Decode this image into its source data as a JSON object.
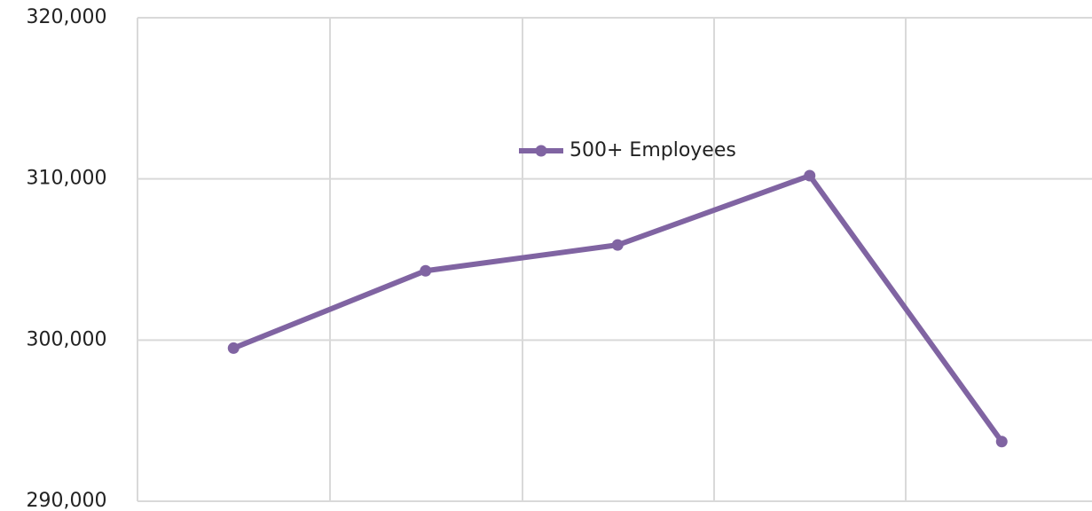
{
  "chart_data": {
    "type": "line",
    "categories": [
      null,
      null,
      null,
      null,
      null
    ],
    "series": [
      {
        "name": "500+ Employees",
        "color": "#8064a2",
        "values": [
          299500,
          304300,
          305900,
          310200,
          293700
        ]
      }
    ],
    "ylim": [
      290000,
      320000
    ],
    "yticks": [
      {
        "value": 290000,
        "label": "290,000"
      },
      {
        "value": 300000,
        "label": "300,000"
      },
      {
        "value": 310000,
        "label": "310,000"
      },
      {
        "value": 320000,
        "label": "320,000"
      }
    ],
    "grid": true
  }
}
